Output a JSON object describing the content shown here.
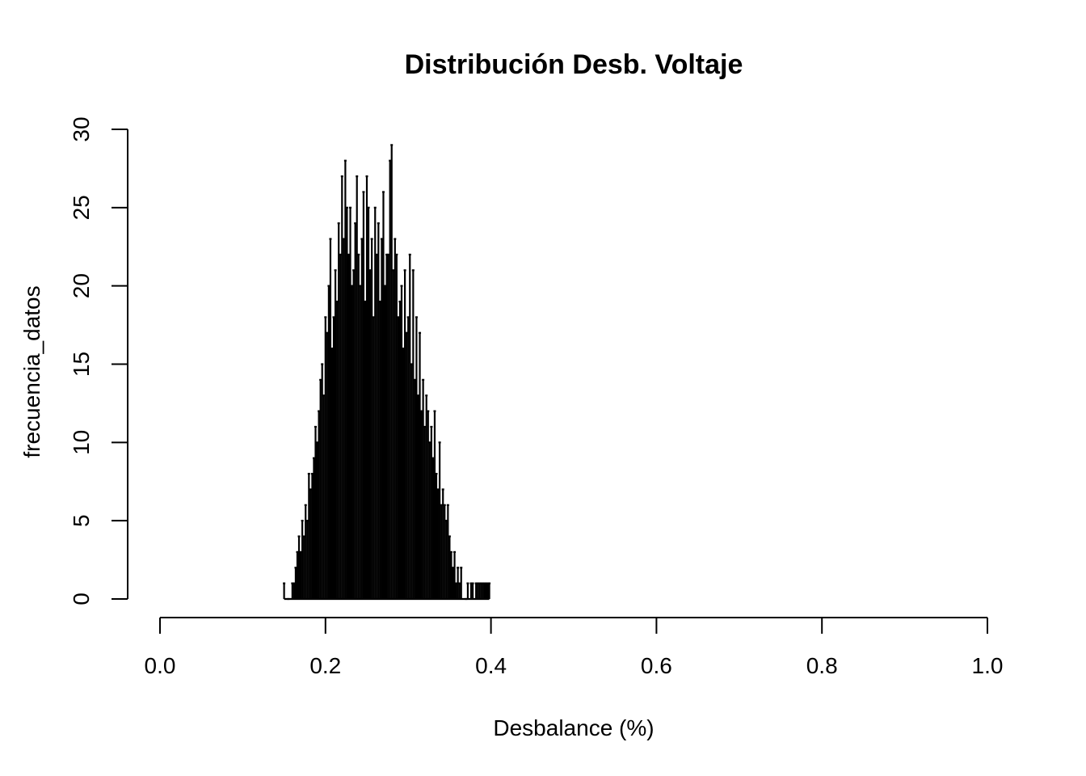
{
  "chart_data": {
    "type": "bar",
    "title": "Distribución Desb. Voltaje",
    "xlabel": "Desbalance (%)",
    "ylabel": "frecuencia_datos",
    "xlim": [
      0.0,
      1.0
    ],
    "ylim": [
      0,
      30
    ],
    "x_ticks": [
      "0.0",
      "0.2",
      "0.4",
      "0.6",
      "0.8",
      "1.0"
    ],
    "y_ticks": [
      "0",
      "5",
      "10",
      "15",
      "20",
      "25",
      "30"
    ],
    "grid": false,
    "bar_color": "#000000",
    "x": [
      0.15,
      0.155,
      0.16,
      0.162,
      0.164,
      0.166,
      0.168,
      0.17,
      0.172,
      0.174,
      0.176,
      0.178,
      0.18,
      0.182,
      0.184,
      0.186,
      0.188,
      0.19,
      0.192,
      0.194,
      0.196,
      0.198,
      0.2,
      0.202,
      0.204,
      0.206,
      0.208,
      0.21,
      0.212,
      0.214,
      0.216,
      0.218,
      0.22,
      0.222,
      0.224,
      0.226,
      0.228,
      0.23,
      0.232,
      0.234,
      0.236,
      0.238,
      0.24,
      0.242,
      0.244,
      0.246,
      0.248,
      0.25,
      0.252,
      0.254,
      0.256,
      0.258,
      0.26,
      0.262,
      0.264,
      0.266,
      0.268,
      0.27,
      0.272,
      0.274,
      0.276,
      0.278,
      0.28,
      0.282,
      0.284,
      0.286,
      0.288,
      0.29,
      0.292,
      0.294,
      0.296,
      0.298,
      0.3,
      0.302,
      0.304,
      0.306,
      0.308,
      0.31,
      0.312,
      0.314,
      0.316,
      0.318,
      0.32,
      0.322,
      0.324,
      0.326,
      0.328,
      0.33,
      0.332,
      0.334,
      0.336,
      0.338,
      0.34,
      0.342,
      0.344,
      0.346,
      0.348,
      0.35,
      0.352,
      0.354,
      0.356,
      0.358,
      0.36,
      0.362,
      0.364,
      0.37,
      0.372,
      0.376,
      0.378,
      0.382,
      0.384,
      0.386,
      0.388,
      0.39,
      0.392,
      0.394,
      0.396,
      0.398
    ],
    "values": [
      1,
      0,
      1,
      1,
      2,
      3,
      4,
      3,
      5,
      4,
      6,
      5,
      8,
      7,
      8,
      9,
      11,
      10,
      12,
      14,
      15,
      13,
      18,
      17,
      20,
      23,
      16,
      18,
      21,
      19,
      24,
      22,
      27,
      23,
      28,
      25,
      22,
      25,
      20,
      21,
      24,
      27,
      22,
      20,
      23,
      26,
      19,
      27,
      25,
      21,
      23,
      18,
      25,
      22,
      24,
      19,
      23,
      26,
      20,
      22,
      22,
      28,
      29,
      21,
      23,
      22,
      18,
      19,
      20,
      16,
      21,
      17,
      18,
      22,
      15,
      21,
      14,
      18,
      13,
      17,
      12,
      14,
      11,
      13,
      12,
      10,
      11,
      9,
      12,
      8,
      7,
      10,
      6,
      7,
      6,
      5,
      6,
      4,
      3,
      2,
      3,
      1,
      2,
      1,
      2,
      0,
      1,
      1,
      1,
      1,
      1,
      1,
      1,
      1,
      1,
      1,
      1,
      1
    ]
  }
}
